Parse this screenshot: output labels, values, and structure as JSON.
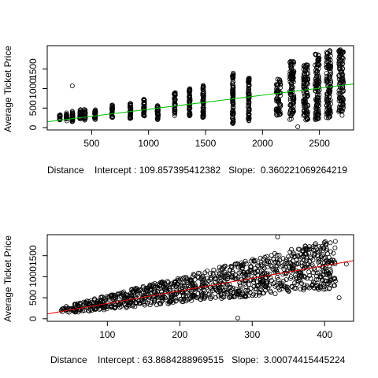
{
  "chart_data": [
    {
      "type": "scatter",
      "title": "",
      "xlabel": "Distance    Intercept : 109.857395412382   Slope:  0.360221069264219",
      "ylabel": "Average Ticket Price",
      "xlim": [
        110,
        2800
      ],
      "ylim": [
        -60,
        2100
      ],
      "xticks": [
        500,
        1000,
        1500,
        2000,
        2500
      ],
      "yticks": [
        0,
        500,
        1000,
        1500
      ],
      "fit_line": {
        "intercept": 109.857395412382,
        "slope": 0.360221069264219,
        "color": "#00c000"
      },
      "clusters": [
        {
          "x": 220,
          "ymin": 180,
          "ymax": 340
        },
        {
          "x": 280,
          "ymin": 170,
          "ymax": 380
        },
        {
          "x": 330,
          "ymin": 150,
          "ymax": 420
        },
        {
          "x": 400,
          "ymin": 200,
          "ymax": 470
        },
        {
          "x": 440,
          "ymin": 180,
          "ymax": 470
        },
        {
          "x": 530,
          "ymin": 200,
          "ymax": 480
        },
        {
          "x": 680,
          "ymin": 250,
          "ymax": 580
        },
        {
          "x": 840,
          "ymin": 230,
          "ymax": 650
        },
        {
          "x": 960,
          "ymin": 230,
          "ymax": 740
        },
        {
          "x": 1080,
          "ymin": 200,
          "ymax": 600
        },
        {
          "x": 1230,
          "ymin": 300,
          "ymax": 900
        },
        {
          "x": 1360,
          "ymin": 300,
          "ymax": 1020
        },
        {
          "x": 1480,
          "ymin": 250,
          "ymax": 1100
        },
        {
          "x": 1740,
          "ymin": 100,
          "ymax": 1400
        },
        {
          "x": 1880,
          "ymin": 150,
          "ymax": 1300
        },
        {
          "x": 2140,
          "ymin": 300,
          "ymax": 1250
        },
        {
          "x": 2260,
          "ymin": 200,
          "ymax": 1700
        },
        {
          "x": 2380,
          "ymin": 150,
          "ymax": 1650
        },
        {
          "x": 2480,
          "ymin": 200,
          "ymax": 1900
        },
        {
          "x": 2580,
          "ymin": 250,
          "ymax": 2000
        },
        {
          "x": 2690,
          "ymin": 300,
          "ymax": 2000
        }
      ],
      "outliers": [
        [
          330,
          1070
        ],
        [
          2310,
          20
        ]
      ]
    },
    {
      "type": "scatter",
      "title": "",
      "xlabel": "Distance    Intercept : 63.8684288969515   Slope:  3.00074415445224",
      "ylabel": "Average Ticket Price",
      "xlim": [
        17,
        440
      ],
      "ylim": [
        -60,
        2000
      ],
      "xticks": [
        100,
        200,
        300,
        400
      ],
      "yticks": [
        0,
        500,
        1000,
        1500
      ],
      "fit_line": {
        "intercept": 63.8684288969515,
        "slope": 3.00074415445224,
        "color": "#e00000"
      },
      "cloud": {
        "xmin": 35,
        "xmax": 415,
        "lower_slope": 1.6,
        "lower_intercept": 60,
        "upper_slope": 4.3,
        "upper_intercept": 130,
        "ymax": 1950
      },
      "outliers": [
        [
          280,
          20
        ],
        [
          420,
          500
        ],
        [
          430,
          1300
        ],
        [
          335,
          1950
        ]
      ]
    }
  ]
}
